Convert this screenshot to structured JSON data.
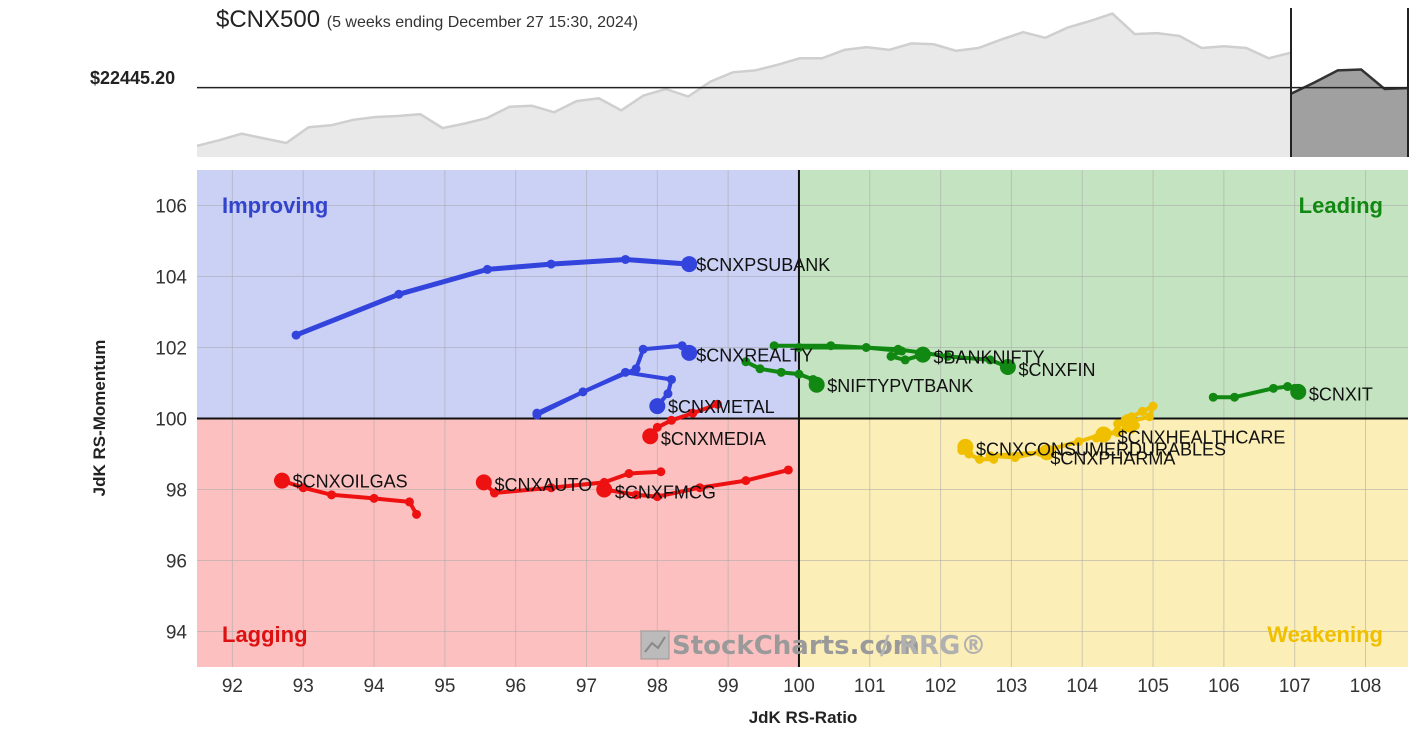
{
  "header": {
    "symbol": "$CNX500",
    "subtitle": "(5 weeks ending December 27 15:30, 2024)",
    "price_label": "$22445.20"
  },
  "watermark": {
    "brand": "StockCharts.com",
    "slash": "/",
    "product": "RRG®"
  },
  "chart_data": {
    "type": "scatter",
    "title": "",
    "xlabel": "JdK RS-Ratio",
    "ylabel": "JdK RS-Momentum",
    "xlim": [
      91.5,
      108.6
    ],
    "ylim": [
      93,
      107
    ],
    "x_ticks": [
      92,
      93,
      94,
      95,
      96,
      97,
      98,
      99,
      100,
      101,
      102,
      103,
      104,
      105,
      106,
      107,
      108
    ],
    "y_ticks": [
      94,
      96,
      98,
      100,
      102,
      104,
      106
    ],
    "center": [
      100,
      100
    ],
    "grid": true,
    "quadrants": [
      {
        "name": "Improving",
        "color": "#3344cc",
        "bg": "#cbd0f5",
        "position": "top-left"
      },
      {
        "name": "Leading",
        "color": "#118811",
        "bg": "#c4e3c0",
        "position": "top-right"
      },
      {
        "name": "Lagging",
        "color": "#dd1111",
        "bg": "#fcc0c0",
        "position": "bottom-left"
      },
      {
        "name": "Weakening",
        "color": "#f0c000",
        "bg": "#fbeeb6",
        "position": "bottom-right"
      }
    ],
    "series": [
      {
        "name": "$CNXPSUBANK",
        "color": "#3344dd",
        "thick": true,
        "points": [
          [
            92.9,
            102.35
          ],
          [
            94.35,
            103.5
          ],
          [
            95.6,
            104.2
          ],
          [
            96.5,
            104.35
          ],
          [
            97.55,
            104.48
          ],
          [
            98.45,
            104.35
          ]
        ]
      },
      {
        "name": "$CNXREALTY",
        "color": "#3344dd",
        "points": [
          [
            96.3,
            100.1
          ],
          [
            96.95,
            100.75
          ],
          [
            97.7,
            101.4
          ],
          [
            97.8,
            101.95
          ],
          [
            98.35,
            102.05
          ],
          [
            98.45,
            101.85
          ]
        ]
      },
      {
        "name": "$CNXMETAL",
        "color": "#3344dd",
        "points": [
          [
            96.3,
            100.15
          ],
          [
            97.55,
            101.3
          ],
          [
            98.2,
            101.1
          ],
          [
            98.15,
            100.7
          ],
          [
            98.0,
            100.35
          ]
        ]
      },
      {
        "name": "$CNXMEDIA",
        "color": "#ee1111",
        "points": [
          [
            98.85,
            100.4
          ],
          [
            98.5,
            100.15
          ],
          [
            98.2,
            99.95
          ],
          [
            98.0,
            99.75
          ],
          [
            97.9,
            99.5
          ]
        ]
      },
      {
        "name": "$CNXOILGAS",
        "color": "#ee1111",
        "points": [
          [
            94.6,
            97.3
          ],
          [
            94.5,
            97.65
          ],
          [
            94.0,
            97.75
          ],
          [
            93.4,
            97.85
          ],
          [
            93.0,
            98.05
          ],
          [
            92.7,
            98.25
          ]
        ]
      },
      {
        "name": "$CNXAUTO",
        "color": "#ee1111",
        "points": [
          [
            98.05,
            98.5
          ],
          [
            97.6,
            98.45
          ],
          [
            97.25,
            98.2
          ],
          [
            96.5,
            98.05
          ],
          [
            95.7,
            97.9
          ],
          [
            95.55,
            98.2
          ]
        ]
      },
      {
        "name": "$CNXFMCG",
        "color": "#ee1111",
        "points": [
          [
            99.85,
            98.55
          ],
          [
            99.25,
            98.25
          ],
          [
            98.6,
            98.05
          ],
          [
            98.0,
            97.8
          ],
          [
            97.7,
            97.85
          ],
          [
            97.25,
            98.0
          ]
        ]
      },
      {
        "name": "$CNXFIN",
        "color": "#118811",
        "points": [
          [
            99.65,
            102.05
          ],
          [
            100.45,
            102.05
          ],
          [
            101.4,
            101.95
          ],
          [
            102.1,
            101.75
          ],
          [
            102.7,
            101.65
          ],
          [
            102.95,
            101.45
          ]
        ]
      },
      {
        "name": "$BANKNIFTY",
        "color": "#118811",
        "points": [
          [
            100.0,
            102.0
          ],
          [
            100.95,
            102.0
          ],
          [
            101.45,
            101.9
          ],
          [
            101.3,
            101.75
          ],
          [
            101.5,
            101.65
          ],
          [
            101.75,
            101.8
          ]
        ]
      },
      {
        "name": "$NIFTYPVTBANK",
        "color": "#118811",
        "points": [
          [
            99.25,
            101.6
          ],
          [
            99.45,
            101.4
          ],
          [
            99.75,
            101.3
          ],
          [
            100.0,
            101.25
          ],
          [
            100.2,
            101.1
          ],
          [
            100.25,
            100.95
          ]
        ]
      },
      {
        "name": "$CNXIT",
        "color": "#118811",
        "points": [
          [
            105.85,
            100.6
          ],
          [
            106.15,
            100.6
          ],
          [
            106.7,
            100.85
          ],
          [
            106.9,
            100.9
          ],
          [
            107.0,
            100.85
          ],
          [
            107.05,
            100.75
          ]
        ]
      },
      {
        "name": "$CNXHEALTHCARE",
        "color": "#f0c000",
        "points": [
          [
            104.5,
            99.85
          ],
          [
            104.7,
            100.05
          ],
          [
            104.85,
            100.2
          ],
          [
            105.0,
            100.35
          ],
          [
            104.95,
            100.05
          ],
          [
            104.65,
            99.9
          ]
        ]
      },
      {
        "name": "$CNXPHARMA",
        "color": "#f0c000",
        "points": [
          [
            104.2,
            99.45
          ],
          [
            104.5,
            99.65
          ],
          [
            104.75,
            99.8
          ],
          [
            104.7,
            99.7
          ],
          [
            104.5,
            99.6
          ],
          [
            104.3,
            99.55
          ]
        ]
      },
      {
        "name": "$CNXCONSUMERDURABLES",
        "color": "#f0c000",
        "points": [
          [
            102.75,
            98.85
          ],
          [
            102.55,
            98.85
          ],
          [
            102.4,
            99.0
          ],
          [
            102.3,
            99.1
          ],
          [
            102.3,
            99.2
          ],
          [
            102.35,
            99.2
          ]
        ]
      },
      {
        "name": "",
        "color": "#f0c000",
        "points": [
          [
            104.35,
            99.6
          ],
          [
            103.95,
            99.35
          ],
          [
            103.4,
            99.05
          ],
          [
            103.05,
            98.9
          ],
          [
            102.7,
            98.95
          ],
          [
            103.5,
            99.05
          ]
        ]
      }
    ],
    "labels": [
      {
        "text": "$CNXPSUBANK",
        "x": 98.55,
        "y": 104.35
      },
      {
        "text": "$CNXREALTY",
        "x": 98.55,
        "y": 101.8
      },
      {
        "text": "$CNXMETAL",
        "x": 98.15,
        "y": 100.35
      },
      {
        "text": "$CNXMEDIA",
        "x": 98.05,
        "y": 99.45
      },
      {
        "text": "$CNXOILGAS",
        "x": 92.85,
        "y": 98.25
      },
      {
        "text": "$CNXAUTO",
        "x": 95.7,
        "y": 98.15
      },
      {
        "text": "$CNXFMCG",
        "x": 97.4,
        "y": 97.95
      },
      {
        "text": "$BANKNIFTY",
        "x": 101.9,
        "y": 101.75
      },
      {
        "text": "$CNXFIN",
        "x": 103.1,
        "y": 101.4
      },
      {
        "text": "$NIFTYPVTBANK",
        "x": 100.4,
        "y": 100.95
      },
      {
        "text": "$CNXIT",
        "x": 107.2,
        "y": 100.7
      },
      {
        "text": "$CNXHEALTHCARE",
        "x": 104.5,
        "y": 99.5
      },
      {
        "text": "$CNXCONSUMERDURABLES",
        "x": 102.5,
        "y": 99.15
      },
      {
        "text": "$CNXPHARMA",
        "x": 103.55,
        "y": 98.9
      }
    ],
    "price_chart": {
      "type": "area",
      "reference_price": 22445.2,
      "values": [
        21820,
        21880,
        21950,
        21900,
        21850,
        22020,
        22040,
        22100,
        22130,
        22140,
        22160,
        22010,
        22060,
        22120,
        22240,
        22250,
        22180,
        22300,
        22330,
        22200,
        22360,
        22430,
        22350,
        22510,
        22610,
        22630,
        22690,
        22760,
        22760,
        22850,
        22880,
        22850,
        22920,
        22910,
        22840,
        22870,
        22960,
        23040,
        22980,
        23090,
        23160,
        23240,
        23020,
        23030,
        23000,
        22870,
        22890,
        22870,
        22760,
        22820
      ],
      "highlight_values": [
        22380,
        22500,
        22630,
        22640,
        22430,
        22440
      ],
      "ylim": [
        21700,
        23300
      ]
    }
  }
}
